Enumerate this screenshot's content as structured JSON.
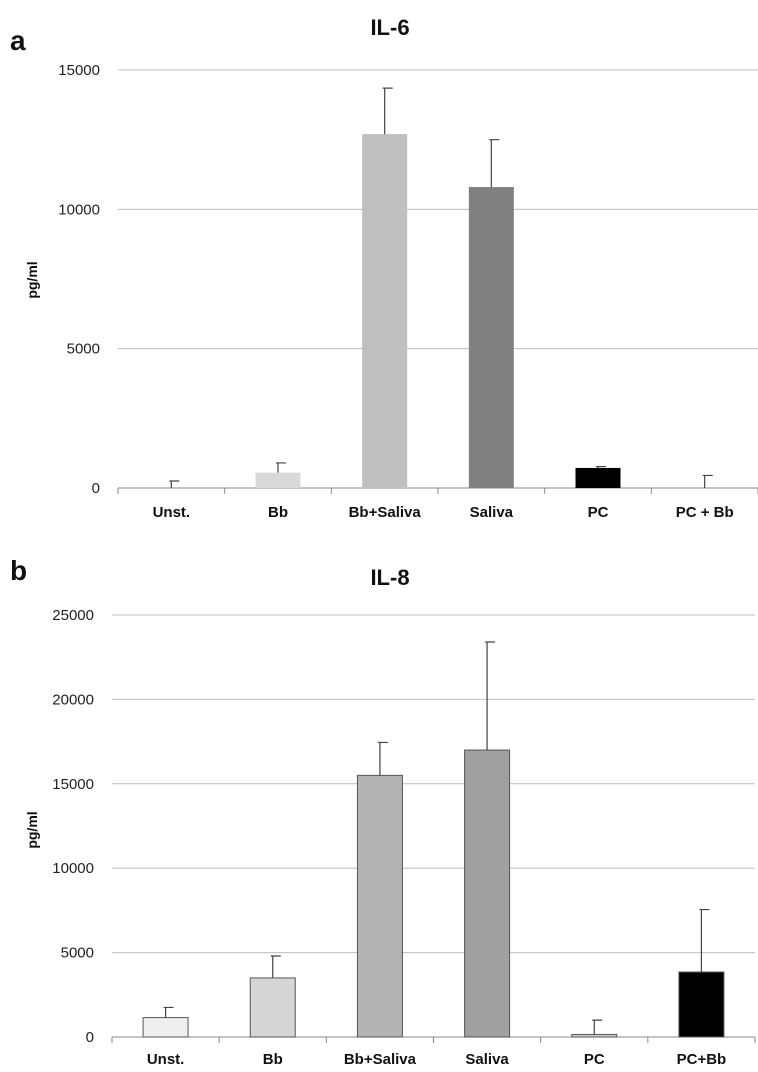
{
  "chart_data": [
    {
      "type": "bar",
      "panel_label": "a",
      "title": "IL-6",
      "ylabel": "pg/ml",
      "xlabel": "",
      "categories": [
        "Unst.",
        "Bb",
        "Bb+Saliva",
        "Saliva",
        "PC",
        "PC + Bb"
      ],
      "values": [
        0,
        550,
        12700,
        10800,
        720,
        0
      ],
      "errors": [
        250,
        350,
        1650,
        1700,
        50,
        450
      ],
      "colors": [
        "#f2f2f2",
        "#d9d9d9",
        "#bfbfbf",
        "#808080",
        "#000000",
        "#ffffff"
      ],
      "bar_outline": false,
      "ylim": [
        0,
        15000
      ],
      "yticks": [
        0,
        5000,
        10000,
        15000
      ],
      "grid": true
    },
    {
      "type": "bar",
      "panel_label": "b",
      "title": "IL-8",
      "ylabel": "pg/ml",
      "xlabel": "",
      "categories": [
        "Unst.",
        "Bb",
        "Bb+Saliva",
        "Saliva",
        "PC",
        "PC+Bb"
      ],
      "values": [
        1150,
        3500,
        15500,
        17000,
        150,
        3850
      ],
      "errors": [
        600,
        1300,
        1950,
        6400,
        850,
        3700
      ],
      "colors": [
        "#efefef",
        "#d6d6d6",
        "#b3b3b3",
        "#a0a0a0",
        "#cfcfcf",
        "#000000"
      ],
      "bar_outline": true,
      "ylim": [
        0,
        25000
      ],
      "yticks": [
        0,
        5000,
        10000,
        15000,
        20000,
        25000
      ],
      "grid": true
    }
  ]
}
